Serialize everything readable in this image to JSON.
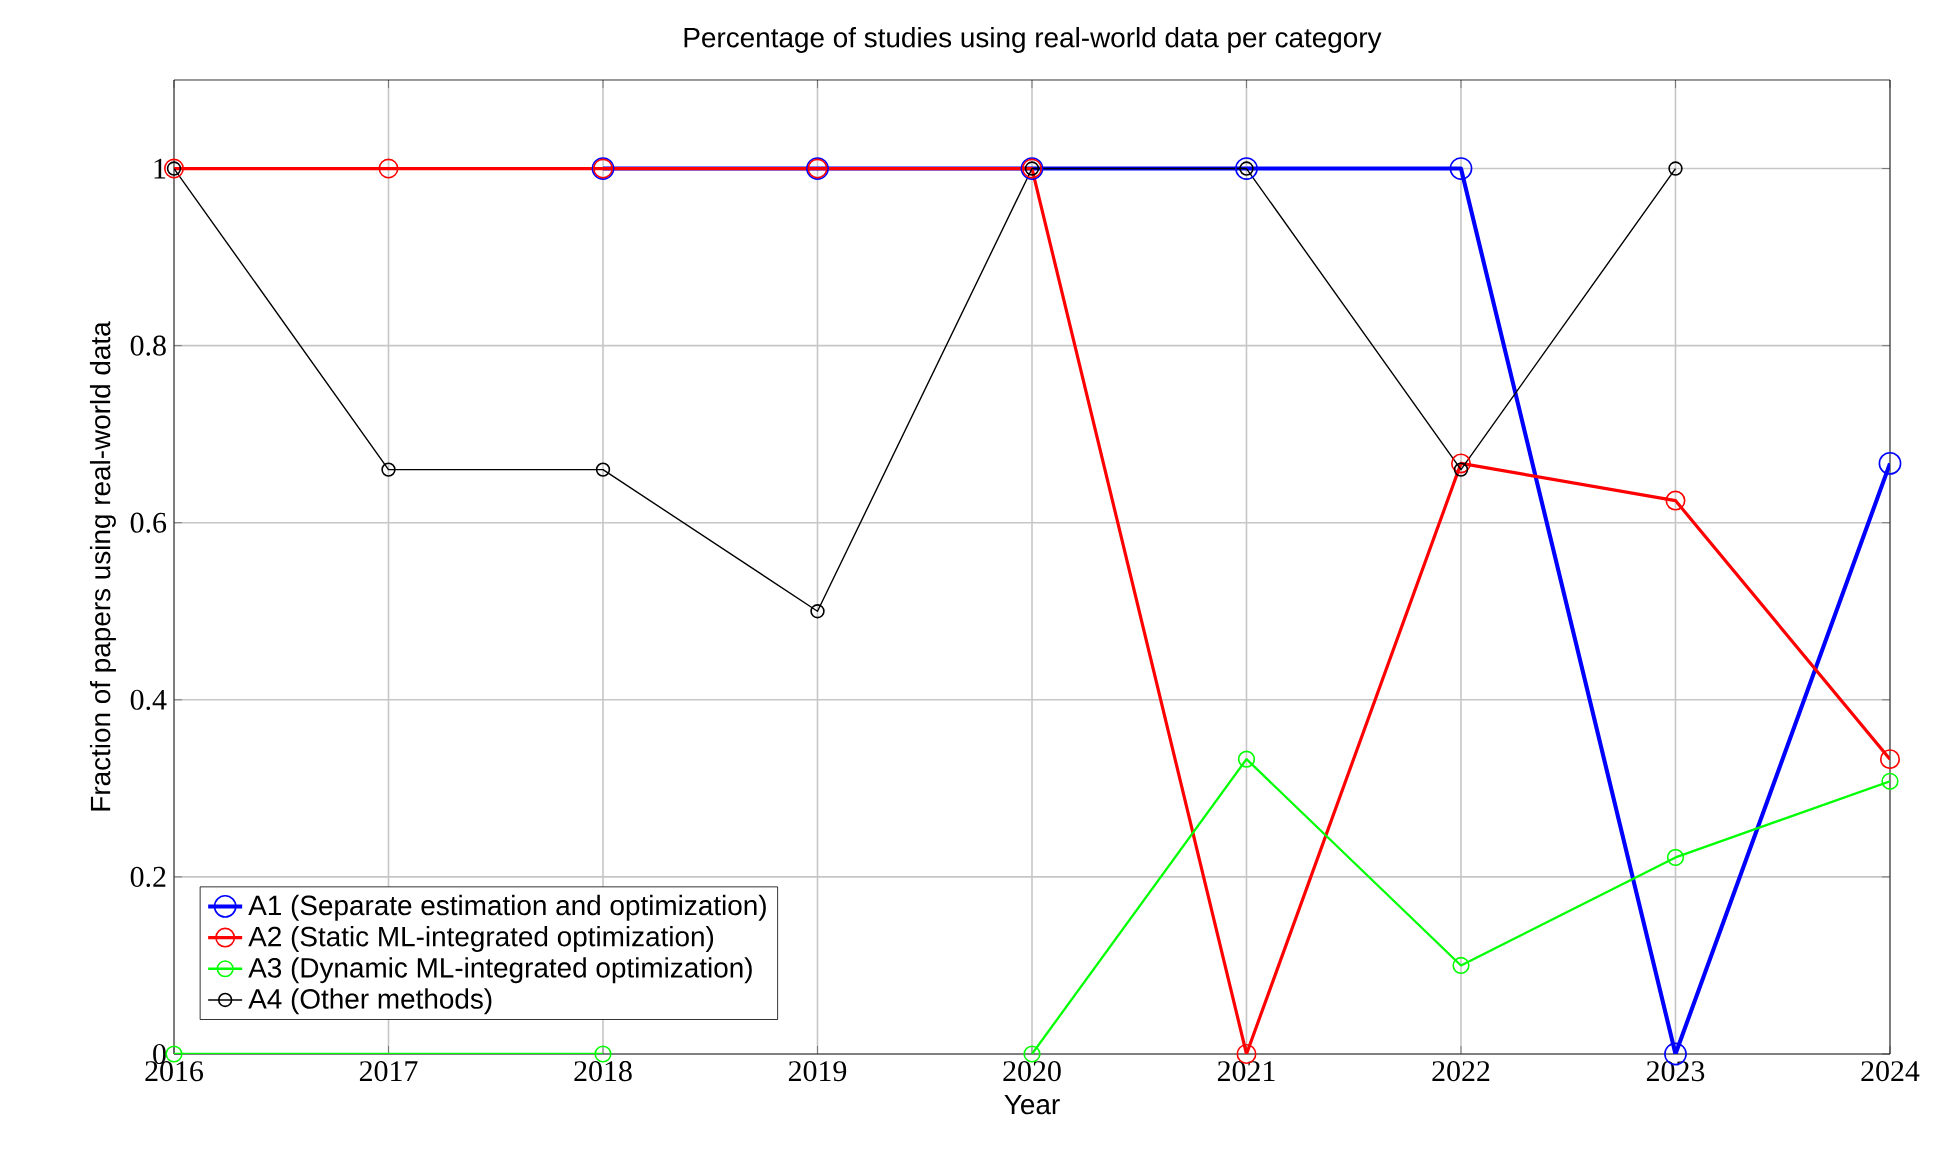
{
  "chart_data": {
    "type": "line",
    "title": "Percentage of studies using real-world data per category",
    "xlabel": "Year",
    "ylabel": "Fraction of papers using real-world data",
    "xlim": [
      2016,
      2024
    ],
    "xticks": [
      2016,
      2017,
      2018,
      2019,
      2020,
      2021,
      2022,
      2023,
      2024
    ],
    "ylim": [
      0,
      1.1
    ],
    "yticks": [
      0,
      0.2,
      0.4,
      0.6,
      0.8,
      1
    ],
    "grid": true,
    "legend": "bottom left",
    "marker": "circle",
    "line_style": "solid",
    "series": [
      {
        "name": "A1 (Separate estimation and optimization)",
        "color": "#0000ff",
        "x": [
          2018,
          2019,
          2020,
          2021,
          2022,
          2023,
          2024
        ],
        "values": [
          1,
          1,
          1,
          1,
          1,
          0,
          0.667
        ]
      },
      {
        "name": "A2 (Static ML-integrated optimization)",
        "color": "#ff0000",
        "x": [
          2016,
          2017,
          2018,
          2019,
          2020,
          2021,
          2022,
          2023,
          2024
        ],
        "values": [
          1,
          1,
          1,
          1,
          1,
          0,
          0.667,
          0.625,
          0.333
        ]
      },
      {
        "name": "A3 (Dynamic ML-integrated optimization)",
        "color": "#00ff00",
        "x": [
          2016,
          2018,
          2019,
          2020,
          2021,
          2022,
          2023,
          2024
        ],
        "values": [
          0,
          0,
          null,
          0,
          0.333,
          0.1,
          0.222,
          0.308
        ]
      },
      {
        "name": "A4 (Other methods)",
        "color": "#000000",
        "x": [
          2016,
          2017,
          2018,
          2019,
          2020,
          2021,
          2022,
          2023
        ],
        "values": [
          1,
          0.66,
          0.66,
          0.5,
          1,
          1,
          0.66,
          1
        ]
      }
    ]
  }
}
